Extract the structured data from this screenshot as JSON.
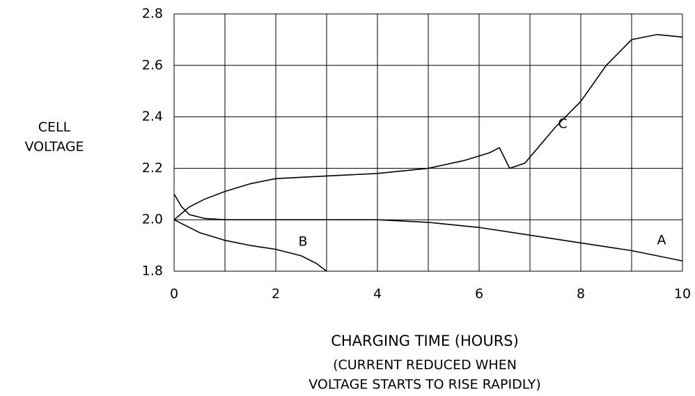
{
  "chart_data": {
    "type": "line",
    "ylabel": [
      "CELL",
      "VOLTAGE"
    ],
    "xlabel": "CHARGING TIME (HOURS)",
    "note": [
      "(CURRENT REDUCED WHEN",
      "VOLTAGE STARTS TO RISE RAPIDLY)"
    ],
    "xlim": [
      0,
      10
    ],
    "xticks": [
      0,
      2,
      4,
      6,
      8,
      10
    ],
    "xgrid": [
      0,
      1,
      2,
      3,
      4,
      5,
      6,
      7,
      8,
      9,
      10
    ],
    "ylim": [
      1.8,
      2.8
    ],
    "yticks": [
      1.8,
      {
        "value": 2,
        "label": "2.0"
      },
      2.2,
      2.4,
      2.6,
      2.8
    ],
    "grid": true,
    "series": [
      {
        "name": "A",
        "color": "#000000",
        "x": [
          0,
          0.15,
          0.3,
          0.6,
          1,
          2,
          3,
          4,
          5,
          6,
          7,
          8,
          9,
          10
        ],
        "values": [
          2.1,
          2.05,
          2.02,
          2.005,
          2.0,
          2.0,
          2.0,
          2.0,
          1.99,
          1.97,
          1.94,
          1.91,
          1.88,
          1.84
        ]
      },
      {
        "name": "B",
        "color": "#000000",
        "x": [
          0,
          0.5,
          1,
          1.5,
          2,
          2.5,
          2.8,
          3
        ],
        "values": [
          2.0,
          1.95,
          1.92,
          1.9,
          1.885,
          1.86,
          1.83,
          1.8
        ]
      },
      {
        "name": "C",
        "color": "#000000",
        "x": [
          0,
          0.3,
          0.6,
          1,
          1.5,
          2,
          3,
          4,
          5,
          5.7,
          6.2,
          6.4,
          6.6,
          6.9,
          7.5,
          8,
          8.5,
          9,
          9.5,
          10
        ],
        "values": [
          2.0,
          2.05,
          2.08,
          2.11,
          2.14,
          2.16,
          2.17,
          2.18,
          2.2,
          2.23,
          2.26,
          2.28,
          2.2,
          2.22,
          2.36,
          2.46,
          2.6,
          2.7,
          2.72,
          2.71
        ]
      }
    ]
  }
}
